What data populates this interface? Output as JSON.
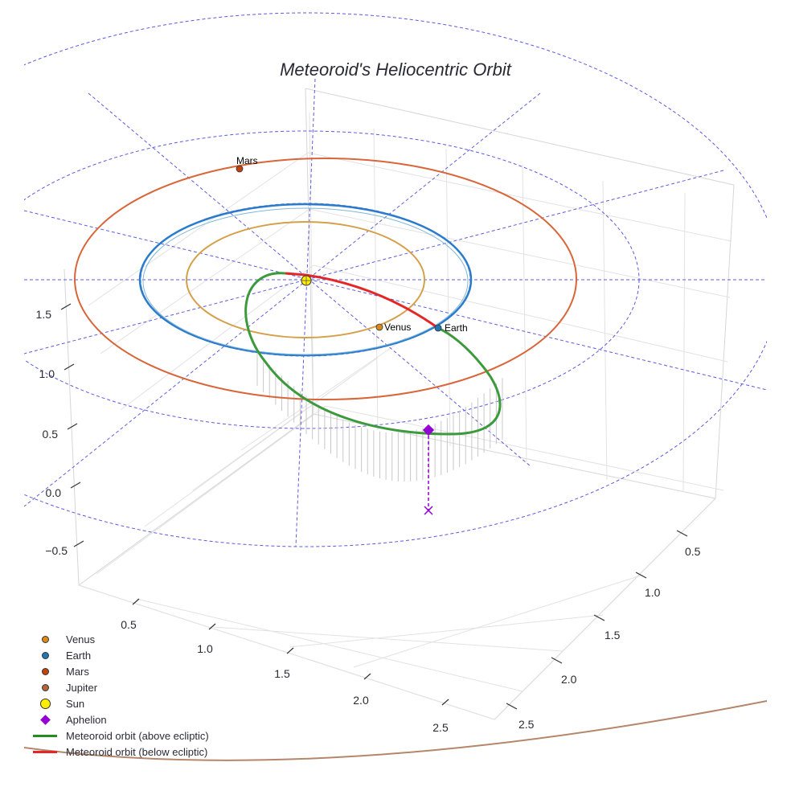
{
  "chart_data": {
    "type": "scatter3d",
    "title": "Meteoroid's Heliocentric Orbit",
    "axes": {
      "z_ticks": [
        "1.5",
        "1.0",
        "0.5",
        "0.0",
        "−0.5"
      ],
      "x_ticks": [
        "0.5",
        "1.0",
        "1.5",
        "2.0",
        "2.5"
      ],
      "y_ticks": [
        "0.5",
        "1.0",
        "1.5",
        "2.0",
        "2.5"
      ]
    },
    "orbits": [
      {
        "name": "Venus orbit",
        "radius_au": 0.72,
        "color": "#d4a04a"
      },
      {
        "name": "Earth orbit",
        "radius_au": 1.0,
        "color": "#2b7bcc"
      },
      {
        "name": "Mars orbit",
        "radius_au": 1.52,
        "color": "#d9663a"
      },
      {
        "name": "Jupiter orbit",
        "radius_au": 5.2,
        "color": "#b5866a"
      }
    ],
    "planet_labels": [
      {
        "name": "Mars",
        "label": "Mars"
      },
      {
        "name": "Venus",
        "label": "Venus"
      },
      {
        "name": "Earth",
        "label": "Earth"
      }
    ],
    "legend": [
      {
        "label": "Venus",
        "symbol": "dot",
        "color": "#d98a1c"
      },
      {
        "label": "Earth",
        "symbol": "dot",
        "color": "#1f77b4"
      },
      {
        "label": "Mars",
        "symbol": "dot",
        "color": "#c1440e"
      },
      {
        "label": "Jupiter",
        "symbol": "dot",
        "color": "#b5653a"
      },
      {
        "label": "Sun",
        "symbol": "dot-large",
        "color": "#ffee00"
      },
      {
        "label": "Aphelion",
        "symbol": "diamond",
        "color": "#9400d3"
      },
      {
        "label": "Meteoroid orbit (above ecliptic)",
        "symbol": "line",
        "color": "#228b22"
      },
      {
        "label": "Meteoroid orbit (below ecliptic)",
        "symbol": "line",
        "color": "#e32626"
      }
    ]
  }
}
